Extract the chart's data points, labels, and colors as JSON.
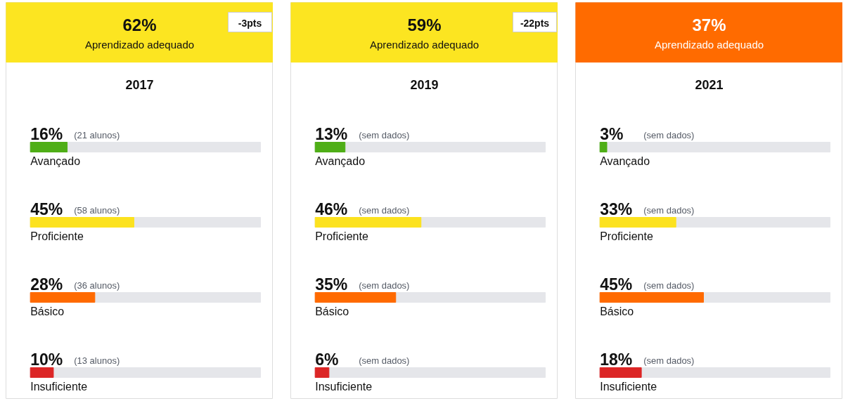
{
  "chart_data": [
    {
      "type": "bar",
      "orientation": "horizontal",
      "title": "2017",
      "categories": [
        "Avançado",
        "Proficiente",
        "Básico",
        "Insuficiente"
      ],
      "values": [
        16,
        45,
        28,
        10
      ],
      "colors": [
        "#4fae17",
        "#fce21f",
        "#ff6a00",
        "#dc2626"
      ],
      "value_labels": [
        "16%",
        "45%",
        "28%",
        "10%"
      ],
      "xlim": [
        0,
        100
      ],
      "annotations": [
        "62%",
        "Aprendizado adequado",
        "(21 alunos)",
        "(58 alunos)",
        "(36 alunos)",
        "(13 alunos)",
        "-3pts"
      ]
    },
    {
      "type": "bar",
      "orientation": "horizontal",
      "title": "2019",
      "categories": [
        "Avançado",
        "Proficiente",
        "Básico",
        "Insuficiente"
      ],
      "values": [
        13,
        46,
        35,
        6
      ],
      "colors": [
        "#4fae17",
        "#fce21f",
        "#ff6a00",
        "#dc2626"
      ],
      "value_labels": [
        "13%",
        "46%",
        "35%",
        "6%"
      ],
      "xlim": [
        0,
        100
      ],
      "annotations": [
        "59%",
        "Aprendizado adequado",
        "(sem dados)",
        "(sem dados)",
        "(sem dados)",
        "(sem dados)",
        "-22pts"
      ]
    },
    {
      "type": "bar",
      "orientation": "horizontal",
      "title": "2021",
      "categories": [
        "Avançado",
        "Proficiente",
        "Básico",
        "Insuficiente"
      ],
      "values": [
        3,
        33,
        45,
        18
      ],
      "colors": [
        "#4fae17",
        "#fce21f",
        "#ff6a00",
        "#dc2626"
      ],
      "value_labels": [
        "3%",
        "33%",
        "45%",
        "18%"
      ],
      "xlim": [
        0,
        100
      ],
      "annotations": [
        "37%",
        "Aprendizado adequado",
        "(sem dados)",
        "(sem dados)",
        "(sem dados)",
        "(sem dados)"
      ]
    }
  ]
}
